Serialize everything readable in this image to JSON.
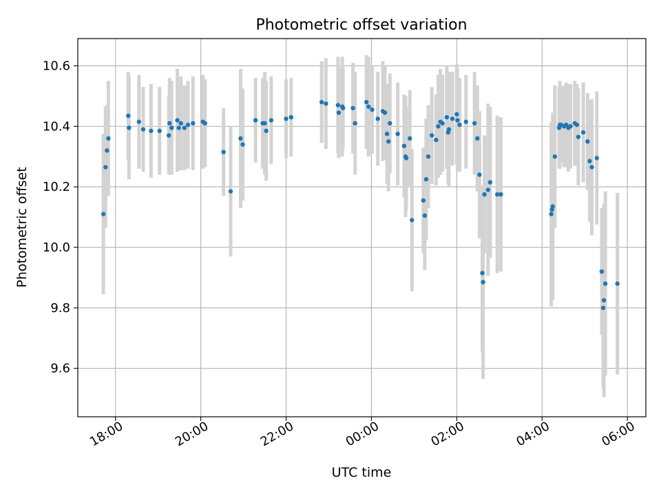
{
  "chart_data": {
    "type": "scatter",
    "title": "Photometric offset variation",
    "xlabel": "UTC time",
    "ylabel": "Photometric offset",
    "x_ticks": [
      "18:00",
      "20:00",
      "22:00",
      "00:00",
      "02:00",
      "04:00",
      "06:00"
    ],
    "y_ticks": [
      "9.6",
      "9.8",
      "10.0",
      "10.2",
      "10.4",
      "10.6"
    ],
    "xlim": [
      "17:07",
      "06:26"
    ],
    "ylim": [
      9.44,
      10.69
    ],
    "grid": true,
    "point_color": "#1f77b4",
    "errorbar_color": "#d3d3d3",
    "points": [
      {
        "t": "17:43",
        "y": 10.11,
        "err": 0.265
      },
      {
        "t": "17:46",
        "y": 10.265,
        "err": 0.2
      },
      {
        "t": "17:48",
        "y": 10.32,
        "err": 0.15
      },
      {
        "t": "17:50",
        "y": 10.36,
        "err": 0.19
      },
      {
        "t": "18:18",
        "y": 10.435,
        "err": 0.145
      },
      {
        "t": "18:19",
        "y": 10.395,
        "err": 0.17
      },
      {
        "t": "18:33",
        "y": 10.415,
        "err": 0.155
      },
      {
        "t": "18:39",
        "y": 10.39,
        "err": 0.14
      },
      {
        "t": "18:50",
        "y": 10.385,
        "err": 0.155
      },
      {
        "t": "19:02",
        "y": 10.385,
        "err": 0.145
      },
      {
        "t": "19:15",
        "y": 10.37,
        "err": 0.13
      },
      {
        "t": "19:16",
        "y": 10.41,
        "err": 0.15
      },
      {
        "t": "19:19",
        "y": 10.395,
        "err": 0.155
      },
      {
        "t": "19:27",
        "y": 10.42,
        "err": 0.17
      },
      {
        "t": "19:29",
        "y": 10.395,
        "err": 0.14
      },
      {
        "t": "19:32",
        "y": 10.41,
        "err": 0.155
      },
      {
        "t": "19:37",
        "y": 10.395,
        "err": 0.14
      },
      {
        "t": "19:42",
        "y": 10.405,
        "err": 0.145
      },
      {
        "t": "19:49",
        "y": 10.41,
        "err": 0.155
      },
      {
        "t": "20:03",
        "y": 10.415,
        "err": 0.155
      },
      {
        "t": "20:06",
        "y": 10.41,
        "err": 0.145
      },
      {
        "t": "20:32",
        "y": 10.315,
        "err": 0.145
      },
      {
        "t": "20:42",
        "y": 10.185,
        "err": 0.215
      },
      {
        "t": "20:56",
        "y": 10.36,
        "err": 0.23
      },
      {
        "t": "20:59",
        "y": 10.34,
        "err": 0.185
      },
      {
        "t": "21:17",
        "y": 10.42,
        "err": 0.14
      },
      {
        "t": "21:27",
        "y": 10.41,
        "err": 0.15
      },
      {
        "t": "21:30",
        "y": 10.41,
        "err": 0.17
      },
      {
        "t": "21:32",
        "y": 10.385,
        "err": 0.165
      },
      {
        "t": "21:39",
        "y": 10.42,
        "err": 0.145
      },
      {
        "t": "22:00",
        "y": 10.425,
        "err": 0.13
      },
      {
        "t": "22:07",
        "y": 10.43,
        "err": 0.13
      },
      {
        "t": "22:50",
        "y": 10.48,
        "err": 0.135
      },
      {
        "t": "22:56",
        "y": 10.475,
        "err": 0.15
      },
      {
        "t": "23:13",
        "y": 10.47,
        "err": 0.16
      },
      {
        "t": "23:14",
        "y": 10.445,
        "err": 0.15
      },
      {
        "t": "23:19",
        "y": 10.465,
        "err": 0.165
      },
      {
        "t": "23:20",
        "y": 10.46,
        "err": 0.135
      },
      {
        "t": "23:34",
        "y": 10.46,
        "err": 0.15
      },
      {
        "t": "23:37",
        "y": 10.41,
        "err": 0.17
      },
      {
        "t": "23:53",
        "y": 10.48,
        "err": 0.155
      },
      {
        "t": "23:56",
        "y": 10.465,
        "err": 0.165
      },
      {
        "t": "00:01",
        "y": 10.455,
        "err": 0.145
      },
      {
        "t": "00:09",
        "y": 10.425,
        "err": 0.155
      },
      {
        "t": "00:16",
        "y": 10.45,
        "err": 0.165
      },
      {
        "t": "00:19",
        "y": 10.445,
        "err": 0.155
      },
      {
        "t": "00:22",
        "y": 10.375,
        "err": 0.165
      },
      {
        "t": "00:24",
        "y": 10.35,
        "err": 0.165
      },
      {
        "t": "00:26",
        "y": 10.41,
        "err": 0.165
      },
      {
        "t": "00:37",
        "y": 10.375,
        "err": 0.17
      },
      {
        "t": "00:46",
        "y": 10.335,
        "err": 0.17
      },
      {
        "t": "00:48",
        "y": 10.3,
        "err": 0.2
      },
      {
        "t": "00:49",
        "y": 10.295,
        "err": 0.17
      },
      {
        "t": "00:54",
        "y": 10.36,
        "err": 0.16
      },
      {
        "t": "00:57",
        "y": 10.09,
        "err": 0.235
      },
      {
        "t": "01:13",
        "y": 10.155,
        "err": 0.175
      },
      {
        "t": "01:15",
        "y": 10.105,
        "err": 0.18
      },
      {
        "t": "01:17",
        "y": 10.225,
        "err": 0.2
      },
      {
        "t": "01:20",
        "y": 10.3,
        "err": 0.17
      },
      {
        "t": "01:25",
        "y": 10.37,
        "err": 0.16
      },
      {
        "t": "01:31",
        "y": 10.355,
        "err": 0.15
      },
      {
        "t": "01:34",
        "y": 10.4,
        "err": 0.17
      },
      {
        "t": "01:37",
        "y": 10.415,
        "err": 0.175
      },
      {
        "t": "01:40",
        "y": 10.41,
        "err": 0.16
      },
      {
        "t": "01:46",
        "y": 10.43,
        "err": 0.17
      },
      {
        "t": "01:48",
        "y": 10.38,
        "err": 0.17
      },
      {
        "t": "01:49",
        "y": 10.39,
        "err": 0.19
      },
      {
        "t": "01:54",
        "y": 10.425,
        "err": 0.155
      },
      {
        "t": "02:00",
        "y": 10.44,
        "err": 0.165
      },
      {
        "t": "02:01",
        "y": 10.42,
        "err": 0.17
      },
      {
        "t": "02:04",
        "y": 10.405,
        "err": 0.155
      },
      {
        "t": "02:13",
        "y": 10.415,
        "err": 0.155
      },
      {
        "t": "02:25",
        "y": 10.41,
        "err": 0.17
      },
      {
        "t": "02:29",
        "y": 10.36,
        "err": 0.175
      },
      {
        "t": "02:32",
        "y": 10.24,
        "err": 0.21
      },
      {
        "t": "02:36",
        "y": 9.915,
        "err": 0.26
      },
      {
        "t": "02:37",
        "y": 9.885,
        "err": 0.32
      },
      {
        "t": "02:39",
        "y": 10.175,
        "err": 0.195
      },
      {
        "t": "02:44",
        "y": 10.19,
        "err": 0.285
      },
      {
        "t": "02:47",
        "y": 10.215,
        "err": 0.25
      },
      {
        "t": "02:57",
        "y": 10.175,
        "err": 0.26
      },
      {
        "t": "03:02",
        "y": 10.175,
        "err": 0.255
      },
      {
        "t": "04:13",
        "y": 10.11,
        "err": 0.305
      },
      {
        "t": "04:14",
        "y": 10.125,
        "err": 0.29
      },
      {
        "t": "04:15",
        "y": 10.135,
        "err": 0.31
      },
      {
        "t": "04:18",
        "y": 10.3,
        "err": 0.235
      },
      {
        "t": "04:24",
        "y": 10.395,
        "err": 0.135
      },
      {
        "t": "04:25",
        "y": 10.405,
        "err": 0.145
      },
      {
        "t": "04:27",
        "y": 10.405,
        "err": 0.125
      },
      {
        "t": "04:31",
        "y": 10.4,
        "err": 0.135
      },
      {
        "t": "04:34",
        "y": 10.405,
        "err": 0.14
      },
      {
        "t": "04:37",
        "y": 10.395,
        "err": 0.145
      },
      {
        "t": "04:40",
        "y": 10.4,
        "err": 0.14
      },
      {
        "t": "04:46",
        "y": 10.41,
        "err": 0.14
      },
      {
        "t": "04:49",
        "y": 10.405,
        "err": 0.135
      },
      {
        "t": "04:51",
        "y": 10.365,
        "err": 0.16
      },
      {
        "t": "04:58",
        "y": 10.38,
        "err": 0.165
      },
      {
        "t": "05:04",
        "y": 10.35,
        "err": 0.16
      },
      {
        "t": "05:07",
        "y": 10.285,
        "err": 0.2
      },
      {
        "t": "05:10",
        "y": 10.265,
        "err": 0.225
      },
      {
        "t": "05:17",
        "y": 10.295,
        "err": 0.22
      },
      {
        "t": "05:24",
        "y": 9.92,
        "err": 0.21
      },
      {
        "t": "05:26",
        "y": 9.8,
        "err": 0.265
      },
      {
        "t": "05:27",
        "y": 9.825,
        "err": 0.32
      },
      {
        "t": "05:29",
        "y": 9.88,
        "err": 0.305
      },
      {
        "t": "05:46",
        "y": 9.88,
        "err": 0.3
      }
    ]
  }
}
